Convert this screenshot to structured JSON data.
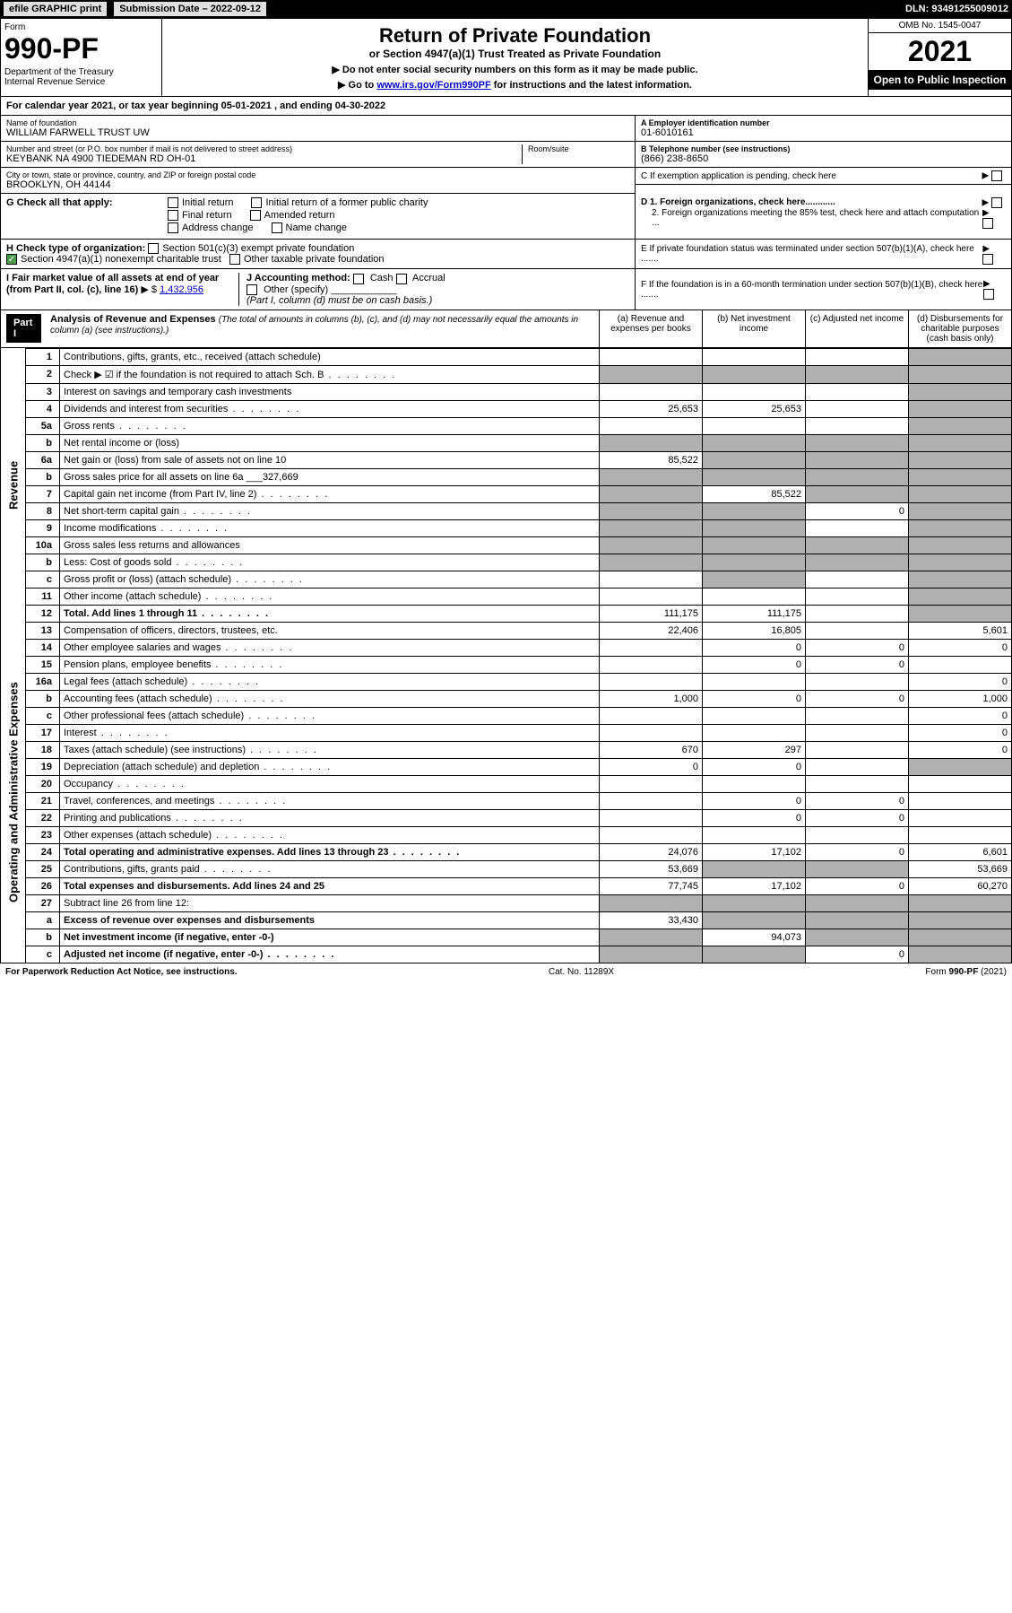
{
  "topbar": {
    "efile": "efile GRAPHIC print",
    "sub_label": "Submission Date – 2022-09-12",
    "dln": "DLN: 93491255009012"
  },
  "header": {
    "form_label": "Form",
    "form_num": "990-PF",
    "dept": "Department of the Treasury\nInternal Revenue Service",
    "title": "Return of Private Foundation",
    "subtitle": "or Section 4947(a)(1) Trust Treated as Private Foundation",
    "note1": "▶ Do not enter social security numbers on this form as it may be made public.",
    "note2_pre": "▶ Go to ",
    "note2_link": "www.irs.gov/Form990PF",
    "note2_post": " for instructions and the latest information.",
    "omb": "OMB No. 1545-0047",
    "year": "2021",
    "open": "Open to Public Inspection"
  },
  "calendar": "For calendar year 2021, or tax year beginning 05-01-2021          , and ending 04-30-2022",
  "info": {
    "name_label": "Name of foundation",
    "name": "WILLIAM FARWELL TRUST UW",
    "addr_label": "Number and street (or P.O. box number if mail is not delivered to street address)",
    "addr": "KEYBANK NA 4900 TIEDEMAN RD OH-01",
    "room_label": "Room/suite",
    "city_label": "City or town, state or province, country, and ZIP or foreign postal code",
    "city": "BROOKLYN, OH  44144",
    "ein_label": "A Employer identification number",
    "ein": "01-6010161",
    "phone_label": "B Telephone number (see instructions)",
    "phone": "(866) 238-8650",
    "c_label": "C If exemption application is pending, check here",
    "d1": "D 1. Foreign organizations, check here............",
    "d2": "2. Foreign organizations meeting the 85% test, check here and attach computation ...",
    "e_label": "E  If private foundation status was terminated under section 507(b)(1)(A), check here .......",
    "f_label": "F  If the foundation is in a 60-month termination under section 507(b)(1)(B), check here ......."
  },
  "g": {
    "label": "G Check all that apply:",
    "initial": "Initial return",
    "initial_former": "Initial return of a former public charity",
    "final": "Final return",
    "amended": "Amended return",
    "addr_change": "Address change",
    "name_change": "Name change"
  },
  "h": {
    "label": "H Check type of organization:",
    "opt1": "Section 501(c)(3) exempt private foundation",
    "opt2": "Section 4947(a)(1) nonexempt charitable trust",
    "opt3": "Other taxable private foundation"
  },
  "i": {
    "label": "I Fair market value of all assets at end of year (from Part II, col. (c), line 16)",
    "value": "1,432,956"
  },
  "j": {
    "label": "J Accounting method:",
    "cash": "Cash",
    "accrual": "Accrual",
    "other": "Other (specify)",
    "note": "(Part I, column (d) must be on cash basis.)"
  },
  "part1": {
    "label": "Part I",
    "title": "Analysis of Revenue and Expenses",
    "sub": "(The total of amounts in columns (b), (c), and (d) may not necessarily equal the amounts in column (a) (see instructions).)",
    "col_a": "(a)  Revenue and expenses per books",
    "col_b": "(b)  Net investment income",
    "col_c": "(c)  Adjusted net income",
    "col_d": "(d)  Disbursements for charitable purposes (cash basis only)"
  },
  "sides": {
    "revenue": "Revenue",
    "expenses": "Operating and Administrative Expenses"
  },
  "lines": [
    {
      "n": "1",
      "desc": "Contributions, gifts, grants, etc., received (attach schedule)",
      "a": "",
      "b": "",
      "c": "",
      "d": "shaded"
    },
    {
      "n": "2",
      "desc": "Check ▶ ☑ if the foundation is not required to attach Sch. B",
      "dots": true,
      "a": "shaded",
      "b": "shaded",
      "c": "shaded",
      "d": "shaded"
    },
    {
      "n": "3",
      "desc": "Interest on savings and temporary cash investments",
      "a": "",
      "b": "",
      "c": "",
      "d": "shaded"
    },
    {
      "n": "4",
      "desc": "Dividends and interest from securities",
      "dots": true,
      "a": "25,653",
      "b": "25,653",
      "c": "",
      "d": "shaded"
    },
    {
      "n": "5a",
      "desc": "Gross rents",
      "dots": true,
      "a": "",
      "b": "",
      "c": "",
      "d": "shaded"
    },
    {
      "n": "b",
      "desc": "Net rental income or (loss)",
      "a": "shaded",
      "b": "shaded",
      "c": "shaded",
      "d": "shaded"
    },
    {
      "n": "6a",
      "desc": "Net gain or (loss) from sale of assets not on line 10",
      "a": "85,522",
      "b": "shaded",
      "c": "shaded",
      "d": "shaded"
    },
    {
      "n": "b",
      "desc": "Gross sales price for all assets on line 6a",
      "extra": "327,669",
      "a": "shaded",
      "b": "shaded",
      "c": "shaded",
      "d": "shaded"
    },
    {
      "n": "7",
      "desc": "Capital gain net income (from Part IV, line 2)",
      "dots": true,
      "a": "shaded",
      "b": "85,522",
      "c": "shaded",
      "d": "shaded"
    },
    {
      "n": "8",
      "desc": "Net short-term capital gain",
      "dots": true,
      "a": "shaded",
      "b": "shaded",
      "c": "0",
      "d": "shaded"
    },
    {
      "n": "9",
      "desc": "Income modifications",
      "dots": true,
      "a": "shaded",
      "b": "shaded",
      "c": "",
      "d": "shaded"
    },
    {
      "n": "10a",
      "desc": "Gross sales less returns and allowances",
      "a": "shaded",
      "b": "shaded",
      "c": "shaded",
      "d": "shaded"
    },
    {
      "n": "b",
      "desc": "Less: Cost of goods sold",
      "dots": true,
      "a": "shaded",
      "b": "shaded",
      "c": "shaded",
      "d": "shaded"
    },
    {
      "n": "c",
      "desc": "Gross profit or (loss) (attach schedule)",
      "dots": true,
      "a": "",
      "b": "shaded",
      "c": "",
      "d": "shaded"
    },
    {
      "n": "11",
      "desc": "Other income (attach schedule)",
      "dots": true,
      "a": "",
      "b": "",
      "c": "",
      "d": "shaded"
    },
    {
      "n": "12",
      "desc": "Total. Add lines 1 through 11",
      "bold": true,
      "dots": true,
      "a": "111,175",
      "b": "111,175",
      "c": "",
      "d": "shaded"
    },
    {
      "n": "13",
      "desc": "Compensation of officers, directors, trustees, etc.",
      "a": "22,406",
      "b": "16,805",
      "c": "",
      "d": "5,601"
    },
    {
      "n": "14",
      "desc": "Other employee salaries and wages",
      "dots": true,
      "a": "",
      "b": "0",
      "c": "0",
      "d": "0"
    },
    {
      "n": "15",
      "desc": "Pension plans, employee benefits",
      "dots": true,
      "a": "",
      "b": "0",
      "c": "0",
      "d": ""
    },
    {
      "n": "16a",
      "desc": "Legal fees (attach schedule)",
      "dots": true,
      "a": "",
      "b": "",
      "c": "",
      "d": "0"
    },
    {
      "n": "b",
      "desc": "Accounting fees (attach schedule)",
      "dots": true,
      "a": "1,000",
      "b": "0",
      "c": "0",
      "d": "1,000"
    },
    {
      "n": "c",
      "desc": "Other professional fees (attach schedule)",
      "dots": true,
      "a": "",
      "b": "",
      "c": "",
      "d": "0"
    },
    {
      "n": "17",
      "desc": "Interest",
      "dots": true,
      "a": "",
      "b": "",
      "c": "",
      "d": "0"
    },
    {
      "n": "18",
      "desc": "Taxes (attach schedule) (see instructions)",
      "dots": true,
      "a": "670",
      "b": "297",
      "c": "",
      "d": "0"
    },
    {
      "n": "19",
      "desc": "Depreciation (attach schedule) and depletion",
      "dots": true,
      "a": "0",
      "b": "0",
      "c": "",
      "d": "shaded"
    },
    {
      "n": "20",
      "desc": "Occupancy",
      "dots": true,
      "a": "",
      "b": "",
      "c": "",
      "d": ""
    },
    {
      "n": "21",
      "desc": "Travel, conferences, and meetings",
      "dots": true,
      "a": "",
      "b": "0",
      "c": "0",
      "d": ""
    },
    {
      "n": "22",
      "desc": "Printing and publications",
      "dots": true,
      "a": "",
      "b": "0",
      "c": "0",
      "d": ""
    },
    {
      "n": "23",
      "desc": "Other expenses (attach schedule)",
      "dots": true,
      "a": "",
      "b": "",
      "c": "",
      "d": ""
    },
    {
      "n": "24",
      "desc": "Total operating and administrative expenses. Add lines 13 through 23",
      "bold": true,
      "dots": true,
      "a": "24,076",
      "b": "17,102",
      "c": "0",
      "d": "6,601"
    },
    {
      "n": "25",
      "desc": "Contributions, gifts, grants paid",
      "dots": true,
      "a": "53,669",
      "b": "shaded",
      "c": "shaded",
      "d": "53,669"
    },
    {
      "n": "26",
      "desc": "Total expenses and disbursements. Add lines 24 and 25",
      "bold": true,
      "a": "77,745",
      "b": "17,102",
      "c": "0",
      "d": "60,270"
    },
    {
      "n": "27",
      "desc": "Subtract line 26 from line 12:",
      "a": "shaded",
      "b": "shaded",
      "c": "shaded",
      "d": "shaded"
    },
    {
      "n": "a",
      "desc": "Excess of revenue over expenses and disbursements",
      "bold": true,
      "a": "33,430",
      "b": "shaded",
      "c": "shaded",
      "d": "shaded"
    },
    {
      "n": "b",
      "desc": "Net investment income (if negative, enter -0-)",
      "bold": true,
      "a": "shaded",
      "b": "94,073",
      "c": "shaded",
      "d": "shaded"
    },
    {
      "n": "c",
      "desc": "Adjusted net income (if negative, enter -0-)",
      "bold": true,
      "dots": true,
      "a": "shaded",
      "b": "shaded",
      "c": "0",
      "d": "shaded"
    }
  ],
  "footer": {
    "left": "For Paperwork Reduction Act Notice, see instructions.",
    "center": "Cat. No. 11289X",
    "right": "Form 990-PF (2021)"
  }
}
